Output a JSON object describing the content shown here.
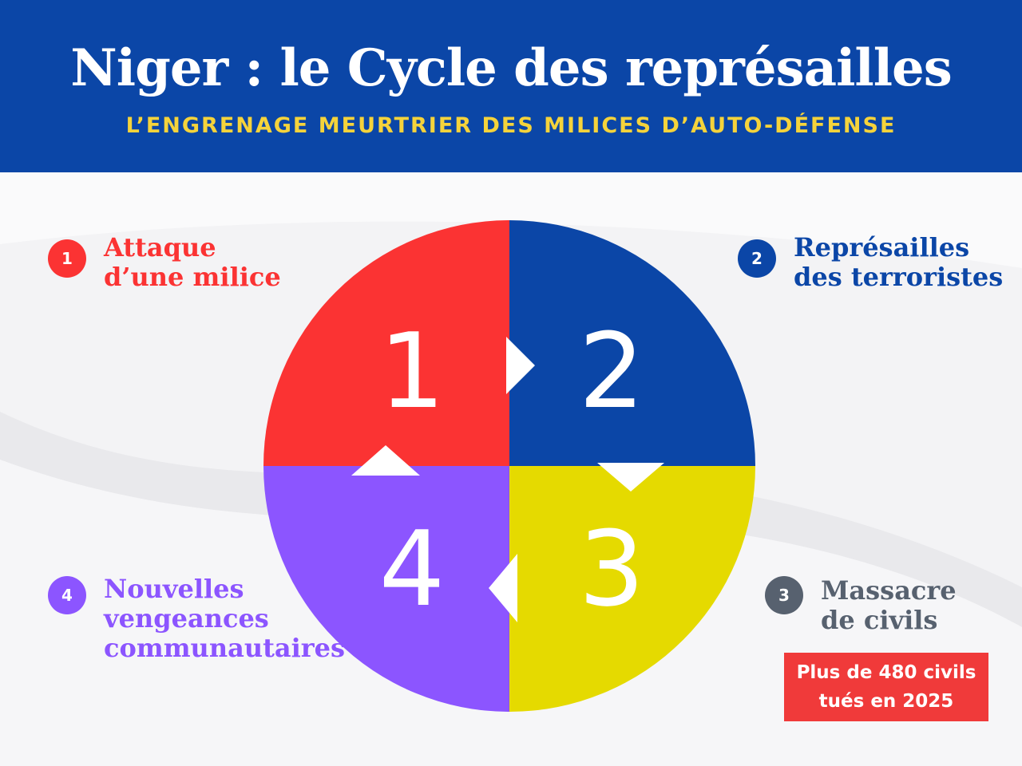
{
  "header": {
    "title": "Niger : le Cycle des représailles",
    "subtitle": "L’ENGRENAGE MEURTRIER DES MILICES D’AUTO-DÉFENSE"
  },
  "colors": {
    "header_bg": "#0b46a7",
    "subtitle": "#f5d33b",
    "step1": "#fb3333",
    "step2": "#0b46a7",
    "step3": "#e5da00",
    "step4": "#8c55ff",
    "step3_label": "#57616f",
    "stat_box": "#f03a3a"
  },
  "cycle": {
    "quadrants": [
      {
        "number": "1",
        "color": "#fb3333"
      },
      {
        "number": "2",
        "color": "#0b46a7"
      },
      {
        "number": "3",
        "color": "#e5da00"
      },
      {
        "number": "4",
        "color": "#8c55ff"
      }
    ]
  },
  "steps": [
    {
      "number": "1",
      "line1": "Attaque",
      "line2": "d’une milice"
    },
    {
      "number": "2",
      "line1": "Représailles",
      "line2": "des terroristes"
    },
    {
      "number": "3",
      "line1": "Massacre",
      "line2": "de civils"
    },
    {
      "number": "4",
      "line1": "Nouvelles",
      "line2": "vengeances",
      "line3": "communautaires"
    }
  ],
  "stat": {
    "line1": "Plus de 480 civils",
    "line2": "tués en 2025"
  }
}
